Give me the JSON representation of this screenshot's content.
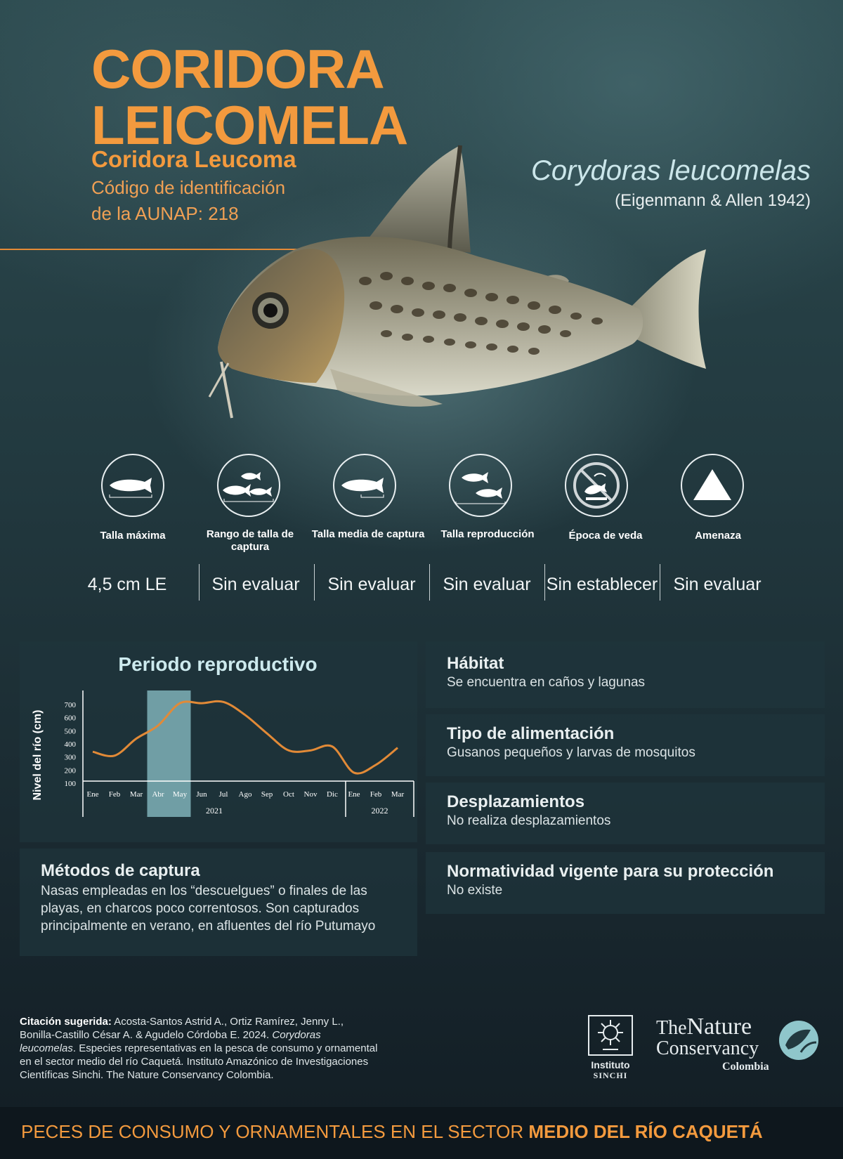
{
  "header": {
    "title_line1": "CORIDORA",
    "title_line2": "LEICOMELA",
    "common_name": "Coridora Leucoma",
    "code_line1": "Código de identificación",
    "code_line2": "de la AUNAP: 218",
    "scientific_name": "Corydoras leucomelas",
    "author": "(Eigenmann & Allen 1942)"
  },
  "stats": [
    {
      "icon": "single-fish-icon",
      "label": "Talla máxima",
      "value": "4,5 cm LE"
    },
    {
      "icon": "fish-group-icon",
      "label": "Rango de talla de captura",
      "value": "Sin evaluar"
    },
    {
      "icon": "fish-measure-icon",
      "label": "Talla media de captura",
      "value": "Sin evaluar"
    },
    {
      "icon": "fish-pair-icon",
      "label": "Talla reproducción",
      "value": "Sin evaluar"
    },
    {
      "icon": "no-fishing-icon",
      "label": "Época de veda",
      "value": "Sin establecer"
    },
    {
      "icon": "warning-triangle-icon",
      "label": "Amenaza",
      "value": "Sin evaluar"
    }
  ],
  "chart_data": {
    "type": "line",
    "title": "Periodo reproductivo",
    "ylabel": "Nivel del río (cm)",
    "ylim": [
      100,
      700
    ],
    "yticks": [
      700,
      600,
      500,
      400,
      300,
      200,
      100
    ],
    "categories": [
      "Ene",
      "Feb",
      "Mar",
      "Abr",
      "May",
      "Jun",
      "Jul",
      "Ago",
      "Sep",
      "Oct",
      "Nov",
      "Dic",
      "Ene",
      "Feb",
      "Mar"
    ],
    "year_labels": [
      "2021",
      "2022"
    ],
    "series": [
      {
        "values": [
          340,
          310,
          440,
          540,
          710,
          710,
          720,
          620,
          480,
          350,
          350,
          380,
          180,
          240,
          370
        ]
      }
    ],
    "highlight": [
      "Abr",
      "May"
    ],
    "highlight_color": "#7fb1b8",
    "line_color": "#e28a37"
  },
  "info": {
    "habitat_title": "Hábitat",
    "habitat_text": "Se encuentra en caños y lagunas",
    "feeding_title": "Tipo de alimentación",
    "feeding_text": "Gusanos pequeños y larvas de mosquitos",
    "movement_title": "Desplazamientos",
    "movement_text": "No realiza desplazamientos",
    "regulation_title": "Normatividad vigente para su protección",
    "regulation_text": "No existe",
    "capture_title": "Métodos de captura",
    "capture_line1": "Nasas empleadas en los “descuelgues” o finales de las",
    "capture_line2": "playas, en charcos poco correntosos. Son capturados",
    "capture_line3": "principalmente en verano, en afluentes del río Putumayo"
  },
  "citation": {
    "label": "Citación sugerida:",
    "line1": "Acosta-Santos Astrid A., Ortiz Ramírez, Jenny L.,",
    "line2_a": "Bonilla-Castillo César A. & Agudelo Córdoba E. 2024.",
    "line2_b": "Corydoras",
    "line3_a": "leucomelas",
    "line3_b": ". Especies representativas en la pesca de consumo y ornamental",
    "line4": "en el sector medio del  río Caquetá. Instituto Amazónico de Investigaciones",
    "line5": "Científicas Sinchi. The Nature Conservancy Colombia."
  },
  "logos": {
    "sinchi_line1": "Instituto",
    "sinchi_line2": "SINCHI",
    "tnc_the": "The",
    "tnc_nature": "Nature",
    "tnc_conservancy": "Conservancy",
    "tnc_country": "Colombia"
  },
  "footer": {
    "text_regular": "PECES DE CONSUMO Y ORNAMENTALES EN EL SECTOR ",
    "text_bold": "MEDIO DEL RÍO CAQUETÁ"
  },
  "colors": {
    "accent": "#f39a3e",
    "scientific_name": "#cbe6ea",
    "panel": "#1e343c"
  }
}
